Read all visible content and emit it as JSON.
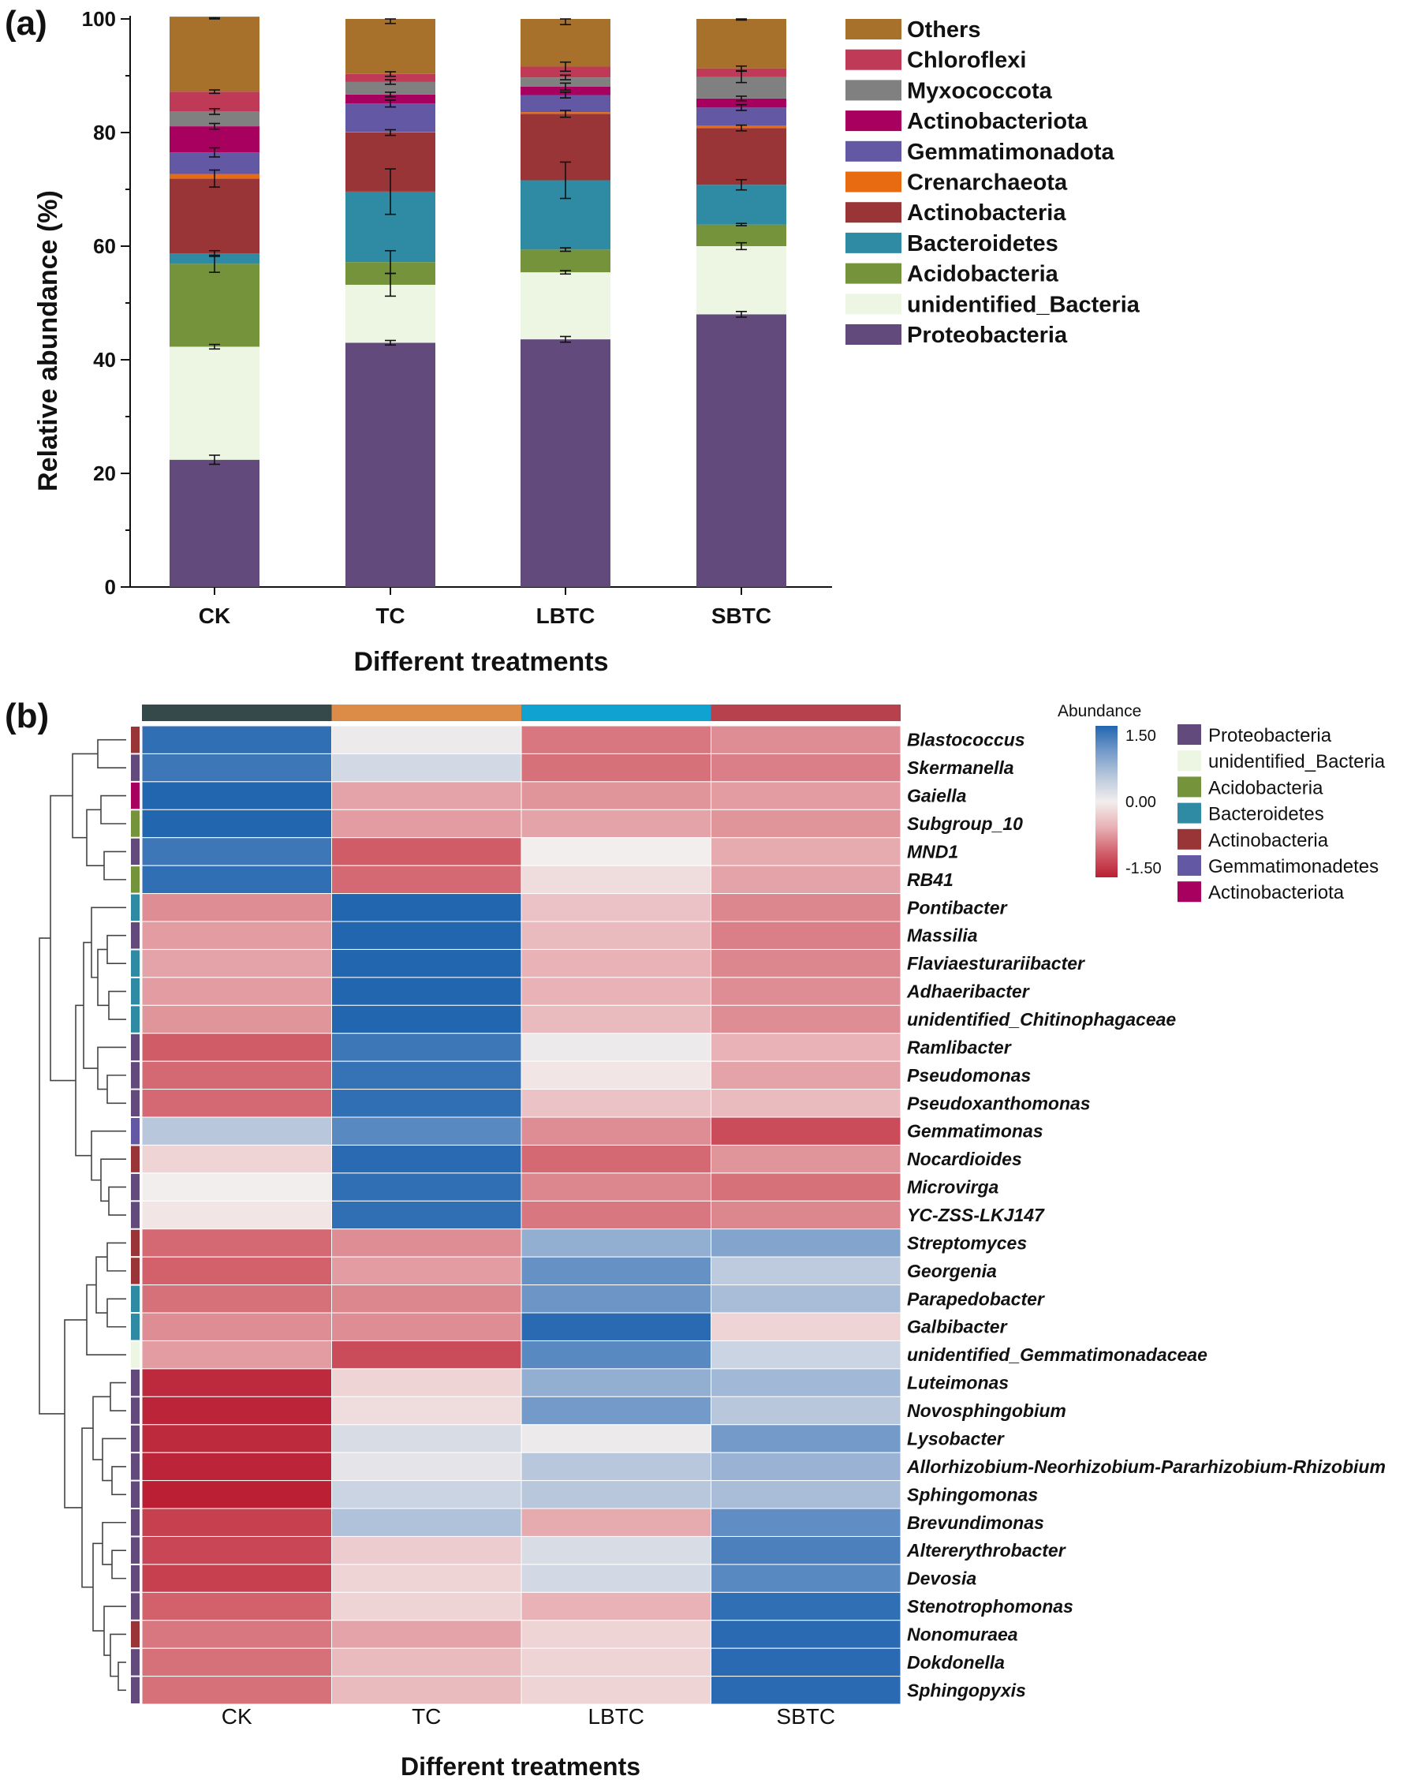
{
  "chart_data": [
    {
      "type": "bar",
      "stacked": true,
      "panel_label": "(a)",
      "categories": [
        "CK",
        "TC",
        "LBTC",
        "SBTC"
      ],
      "xlabel": "Different treatments",
      "ylabel": "Relative abundance (%)",
      "ylim": [
        0,
        100
      ],
      "yticks": [
        0,
        20,
        40,
        60,
        80,
        100
      ],
      "legend_position": "right",
      "legend_order": [
        "Others",
        "Chloroflexi",
        "Myxococcota",
        "Actinobacteriota",
        "Gemmatimonadota",
        "Crenarchaeota",
        "Actinobacteria",
        "Bacteroidetes",
        "Acidobacteria",
        "unidentified_Bacteria",
        "Proteobacteria"
      ],
      "series": [
        {
          "name": "Proteobacteria",
          "color": "#624a7c",
          "values": [
            22.4,
            43.0,
            43.6,
            48.0
          ],
          "errors": [
            0.8,
            0.4,
            0.5,
            0.5
          ]
        },
        {
          "name": "unidentified_Bacteria",
          "color": "#edf5e3",
          "values": [
            19.9,
            10.2,
            11.8,
            12.0
          ],
          "errors": [
            0.4,
            2.0,
            0.3,
            0.6
          ]
        },
        {
          "name": "Acidobacteria",
          "color": "#74933b",
          "values": [
            14.6,
            4.0,
            4.0,
            3.8
          ],
          "errors": [
            1.5,
            2.0,
            0.3,
            0.2
          ]
        },
        {
          "name": "Bacteroidetes",
          "color": "#2f8ba3",
          "values": [
            1.8,
            12.4,
            12.2,
            7.0
          ],
          "errors": [
            0.5,
            4.0,
            3.2,
            0.9
          ]
        },
        {
          "name": "Actinobacteria",
          "color": "#993536",
          "values": [
            13.2,
            10.4,
            11.7,
            10.0
          ],
          "errors": [
            1.5,
            0.5,
            0.6,
            0.5
          ]
        },
        {
          "name": "Crenarchaeota",
          "color": "#e86b12",
          "values": [
            0.8,
            0.1,
            0.3,
            0.4
          ],
          "errors": [
            0.0,
            0.0,
            0.0,
            0.0
          ]
        },
        {
          "name": "Gemmatimonadota",
          "color": "#6358a4",
          "values": [
            3.8,
            5.0,
            3.0,
            3.2
          ],
          "errors": [
            0.8,
            0.6,
            0.5,
            0.5
          ]
        },
        {
          "name": "Actinobacteriota",
          "color": "#a8005f",
          "values": [
            4.6,
            1.6,
            1.5,
            1.6
          ],
          "errors": [
            0.5,
            0.4,
            0.6,
            0.4
          ]
        },
        {
          "name": "Myxococcota",
          "color": "#808080",
          "values": [
            2.6,
            2.2,
            1.6,
            3.8
          ],
          "errors": [
            0.5,
            0.4,
            0.4,
            1.0
          ]
        },
        {
          "name": "Chloroflexi",
          "color": "#bf3a56",
          "values": [
            3.5,
            1.4,
            1.9,
            1.5
          ],
          "errors": [
            0.3,
            0.4,
            0.8,
            0.4
          ]
        },
        {
          "name": "Others",
          "color": "#a7712b",
          "values": [
            13.2,
            9.7,
            8.4,
            8.7
          ],
          "errors": [
            0.2,
            0.8,
            1.0,
            0.2
          ]
        }
      ]
    },
    {
      "type": "heatmap",
      "panel_label": "(b)",
      "columns": [
        "CK",
        "TC",
        "LBTC",
        "SBTC"
      ],
      "column_colors": [
        "#35484a",
        "#dc8c47",
        "#10a2d0",
        "#b7414c"
      ],
      "xlabel": "Different treatments",
      "scale_title": "Abundance",
      "scale_min": -1.5,
      "scale_max": 1.5,
      "scale_ticks": [
        "1.50",
        "0.00",
        "-1.50"
      ],
      "phylum_legend": [
        {
          "name": "Proteobacteria",
          "color": "#624a7c"
        },
        {
          "name": "unidentified_Bacteria",
          "color": "#edf5e3"
        },
        {
          "name": "Acidobacteria",
          "color": "#74933b"
        },
        {
          "name": "Bacteroidetes",
          "color": "#2f8ba3"
        },
        {
          "name": "Actinobacteria",
          "color": "#993536"
        },
        {
          "name": "Gemmatimonadetes",
          "color": "#6358a4"
        },
        {
          "name": "Actinobacteriota",
          "color": "#a8005f"
        }
      ],
      "rows": [
        {
          "genus": "Blastococcus",
          "phylum": "Actinobacteria",
          "values": [
            1.4,
            0.05,
            -0.75,
            -0.6
          ]
        },
        {
          "genus": "Skermanella",
          "phylum": "Proteobacteria",
          "values": [
            1.3,
            0.25,
            -0.8,
            -0.7
          ]
        },
        {
          "genus": "Gaiella",
          "phylum": "Actinobacteriota",
          "values": [
            1.5,
            -0.45,
            -0.55,
            -0.5
          ]
        },
        {
          "genus": "Subgroup_10",
          "phylum": "Acidobacteria",
          "values": [
            1.5,
            -0.5,
            -0.45,
            -0.55
          ]
        },
        {
          "genus": "MND1",
          "phylum": "Proteobacteria",
          "values": [
            1.3,
            -0.95,
            0.0,
            -0.4
          ]
        },
        {
          "genus": "RB41",
          "phylum": "Acidobacteria",
          "values": [
            1.4,
            -0.85,
            -0.1,
            -0.45
          ]
        },
        {
          "genus": "Pontibacter",
          "phylum": "Bacteroidetes",
          "values": [
            -0.6,
            1.5,
            -0.25,
            -0.65
          ]
        },
        {
          "genus": "Massilia",
          "phylum": "Proteobacteria",
          "values": [
            -0.5,
            1.5,
            -0.3,
            -0.7
          ]
        },
        {
          "genus": "Flaviaesturariibacter",
          "phylum": "Bacteroidetes",
          "values": [
            -0.45,
            1.5,
            -0.35,
            -0.65
          ]
        },
        {
          "genus": "Adhaeribacter",
          "phylum": "Bacteroidetes",
          "values": [
            -0.5,
            1.5,
            -0.35,
            -0.6
          ]
        },
        {
          "genus": "unidentified_Chitinophagaceae",
          "phylum": "Bacteroidetes",
          "values": [
            -0.55,
            1.5,
            -0.3,
            -0.6
          ]
        },
        {
          "genus": "Ramlibacter",
          "phylum": "Proteobacteria",
          "values": [
            -0.95,
            1.3,
            0.05,
            -0.35
          ]
        },
        {
          "genus": "Pseudomonas",
          "phylum": "Proteobacteria",
          "values": [
            -0.85,
            1.35,
            -0.05,
            -0.45
          ]
        },
        {
          "genus": "Pseudoxanthomonas",
          "phylum": "Proteobacteria",
          "values": [
            -0.85,
            1.4,
            -0.25,
            -0.3
          ]
        },
        {
          "genus": "Gemmatimonas",
          "phylum": "Gemmatimonadetes",
          "values": [
            0.45,
            1.1,
            -0.6,
            -1.1
          ]
        },
        {
          "genus": "Nocardioides",
          "phylum": "Actinobacteria",
          "values": [
            -0.15,
            1.45,
            -0.85,
            -0.55
          ]
        },
        {
          "genus": "Microvirga",
          "phylum": "Proteobacteria",
          "values": [
            0.0,
            1.4,
            -0.65,
            -0.8
          ]
        },
        {
          "genus": "YC-ZSS-LKJ147",
          "phylum": "Proteobacteria",
          "values": [
            -0.05,
            1.4,
            -0.75,
            -0.65
          ]
        },
        {
          "genus": "Streptomyces",
          "phylum": "Actinobacteria",
          "values": [
            -0.85,
            -0.6,
            0.7,
            0.8
          ]
        },
        {
          "genus": "Georgenia",
          "phylum": "Actinobacteria",
          "values": [
            -0.9,
            -0.5,
            1.0,
            0.4
          ]
        },
        {
          "genus": "Parapedobacter",
          "phylum": "Bacteroidetes",
          "values": [
            -0.8,
            -0.65,
            0.95,
            0.55
          ]
        },
        {
          "genus": "Galbibacter",
          "phylum": "Bacteroidetes",
          "values": [
            -0.6,
            -0.6,
            1.45,
            -0.15
          ]
        },
        {
          "genus": "unidentified_Gemmatimonadaceae",
          "phylum": "unidentified_Bacteria",
          "values": [
            -0.5,
            -1.1,
            1.1,
            0.3
          ]
        },
        {
          "genus": "Luteimonas",
          "phylum": "Proteobacteria",
          "values": [
            -1.4,
            -0.15,
            0.7,
            0.6
          ]
        },
        {
          "genus": "Novosphingobium",
          "phylum": "Proteobacteria",
          "values": [
            -1.45,
            -0.1,
            0.9,
            0.45
          ]
        },
        {
          "genus": "Lysobacter",
          "phylum": "Proteobacteria",
          "values": [
            -1.4,
            0.2,
            0.05,
            0.9
          ]
        },
        {
          "genus": "Allorhizobium-Neorhizobium-Pararhizobium-Rhizobium",
          "phylum": "Proteobacteria",
          "values": [
            -1.45,
            0.1,
            0.45,
            0.65
          ]
        },
        {
          "genus": "Sphingomonas",
          "phylum": "Proteobacteria",
          "values": [
            -1.5,
            0.3,
            0.45,
            0.55
          ]
        },
        {
          "genus": "Brevundimonas",
          "phylum": "Proteobacteria",
          "values": [
            -1.2,
            0.5,
            -0.4,
            1.05
          ]
        },
        {
          "genus": "Altererythrobacter",
          "phylum": "Proteobacteria",
          "values": [
            -1.15,
            -0.2,
            0.2,
            1.2
          ]
        },
        {
          "genus": "Devosia",
          "phylum": "Proteobacteria",
          "values": [
            -1.2,
            -0.15,
            0.25,
            1.1
          ]
        },
        {
          "genus": "Stenotrophomonas",
          "phylum": "Proteobacteria",
          "values": [
            -0.9,
            -0.15,
            -0.35,
            1.4
          ]
        },
        {
          "genus": "Nonomuraea",
          "phylum": "Actinobacteria",
          "values": [
            -0.75,
            -0.45,
            -0.15,
            1.45
          ]
        },
        {
          "genus": "Dokdonella",
          "phylum": "Proteobacteria",
          "values": [
            -0.8,
            -0.3,
            -0.15,
            1.45
          ]
        },
        {
          "genus": "Sphingopyxis",
          "phylum": "Proteobacteria",
          "values": [
            -0.8,
            -0.3,
            -0.15,
            1.45
          ]
        }
      ]
    }
  ]
}
